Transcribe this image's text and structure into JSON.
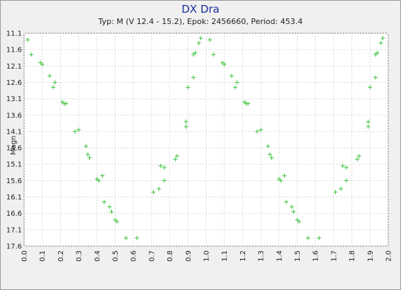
{
  "chart_data": {
    "type": "scatter",
    "title": "DX Dra",
    "subtitle": "Typ: M (V 12.4 - 15.2), Epok: 2456660, Period: 453.4",
    "xlabel": "",
    "ylabel": "Magn",
    "xlim": [
      0.0,
      2.0
    ],
    "ylim": [
      17.6,
      11.1
    ],
    "y_inverted": true,
    "grid": true,
    "x_ticks": [
      "0.0",
      "0.1",
      "0.2",
      "0.3",
      "0.4",
      "0.5",
      "0.6",
      "0.7",
      "0.8",
      "0.9",
      "1.0",
      "1.1",
      "1.2",
      "1.3",
      "1.4",
      "1.5",
      "1.6",
      "1.7",
      "1.8",
      "1.9",
      "2.0"
    ],
    "y_ticks": [
      "11.1",
      "11.6",
      "12.1",
      "12.6",
      "13.1",
      "13.6",
      "14.1",
      "14.6",
      "15.1",
      "15.6",
      "16.1",
      "16.6",
      "17.1",
      "17.6"
    ],
    "marker_color": "#3cc23c",
    "series": [
      {
        "points": [
          [
            0.02,
            11.3
          ],
          [
            0.04,
            11.75
          ],
          [
            0.09,
            12.0
          ],
          [
            0.1,
            12.05
          ],
          [
            0.14,
            12.4
          ],
          [
            0.16,
            12.75
          ],
          [
            0.17,
            12.6
          ],
          [
            0.21,
            13.2
          ],
          [
            0.22,
            13.25
          ],
          [
            0.23,
            13.25
          ],
          [
            0.28,
            14.1
          ],
          [
            0.3,
            14.05
          ],
          [
            0.34,
            14.55
          ],
          [
            0.35,
            14.8
          ],
          [
            0.36,
            14.9
          ],
          [
            0.4,
            15.55
          ],
          [
            0.41,
            15.6
          ],
          [
            0.43,
            15.45
          ],
          [
            0.44,
            16.25
          ],
          [
            0.47,
            16.4
          ],
          [
            0.48,
            16.55
          ],
          [
            0.5,
            16.8
          ],
          [
            0.51,
            16.85
          ],
          [
            0.56,
            17.35
          ],
          [
            0.62,
            17.35
          ],
          [
            0.71,
            15.95
          ],
          [
            0.74,
            15.85
          ],
          [
            0.75,
            15.15
          ],
          [
            0.77,
            15.2
          ],
          [
            0.77,
            15.6
          ],
          [
            0.83,
            14.95
          ],
          [
            0.84,
            14.85
          ],
          [
            0.89,
            13.8
          ],
          [
            0.89,
            13.95
          ],
          [
            0.9,
            12.75
          ],
          [
            0.93,
            12.45
          ],
          [
            0.93,
            11.75
          ],
          [
            0.94,
            11.7
          ],
          [
            0.96,
            11.4
          ],
          [
            0.97,
            11.25
          ],
          [
            1.02,
            11.3
          ],
          [
            1.04,
            11.75
          ],
          [
            1.09,
            12.0
          ],
          [
            1.1,
            12.05
          ],
          [
            1.14,
            12.4
          ],
          [
            1.16,
            12.75
          ],
          [
            1.17,
            12.6
          ],
          [
            1.21,
            13.2
          ],
          [
            1.22,
            13.25
          ],
          [
            1.23,
            13.25
          ],
          [
            1.28,
            14.1
          ],
          [
            1.3,
            14.05
          ],
          [
            1.34,
            14.55
          ],
          [
            1.35,
            14.8
          ],
          [
            1.36,
            14.9
          ],
          [
            1.4,
            15.55
          ],
          [
            1.41,
            15.6
          ],
          [
            1.43,
            15.45
          ],
          [
            1.44,
            16.25
          ],
          [
            1.47,
            16.4
          ],
          [
            1.48,
            16.55
          ],
          [
            1.5,
            16.8
          ],
          [
            1.51,
            16.85
          ],
          [
            1.56,
            17.35
          ],
          [
            1.62,
            17.35
          ],
          [
            1.71,
            15.95
          ],
          [
            1.74,
            15.85
          ],
          [
            1.75,
            15.15
          ],
          [
            1.77,
            15.2
          ],
          [
            1.77,
            15.6
          ],
          [
            1.83,
            14.95
          ],
          [
            1.84,
            14.85
          ],
          [
            1.89,
            13.8
          ],
          [
            1.89,
            13.95
          ],
          [
            1.9,
            12.75
          ],
          [
            1.93,
            12.45
          ],
          [
            1.93,
            11.75
          ],
          [
            1.94,
            11.7
          ],
          [
            1.96,
            11.4
          ],
          [
            1.97,
            11.25
          ]
        ]
      }
    ]
  }
}
